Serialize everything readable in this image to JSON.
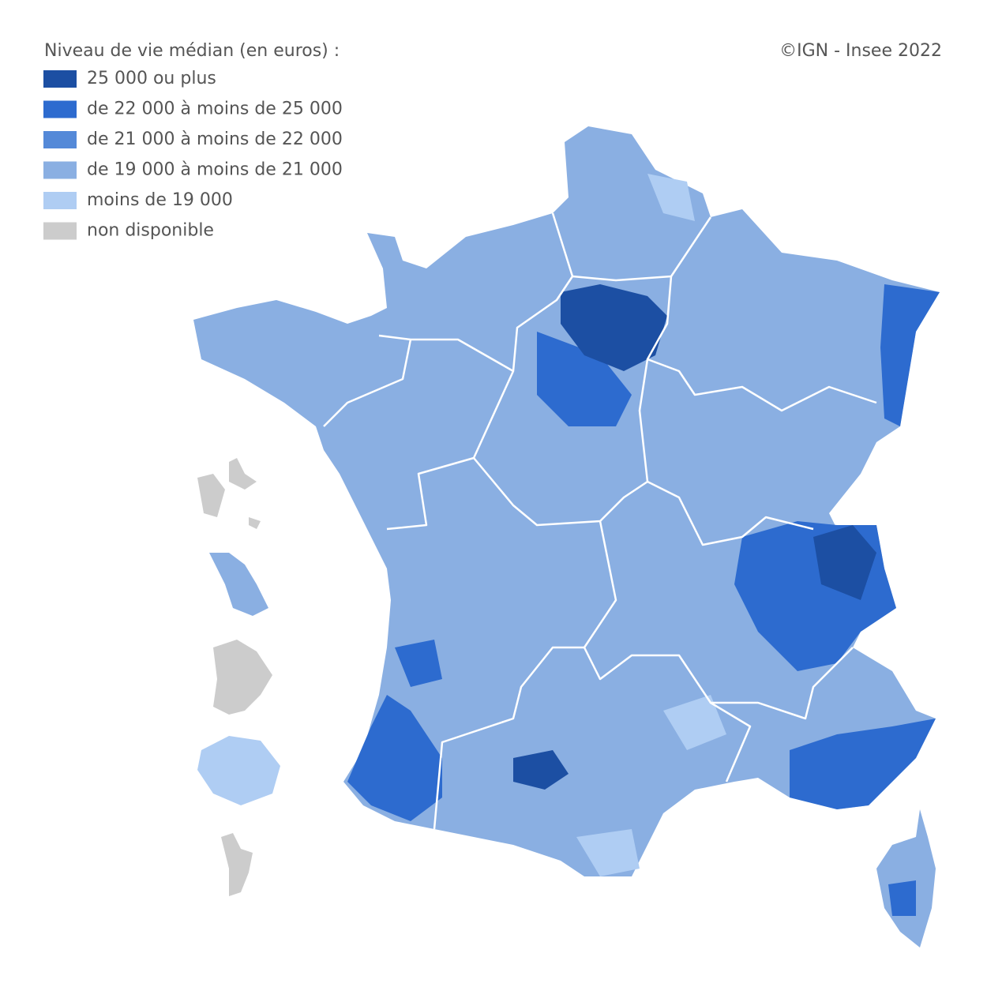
{
  "legend": {
    "title": "Niveau de vie médian (en euros) :",
    "items": [
      {
        "label": "25 000 ou plus",
        "color": "#1c4fa3"
      },
      {
        "label": "de 22 000 à moins de 25 000",
        "color": "#2d6bcf"
      },
      {
        "label": "de 21 000 à moins de 22 000",
        "color": "#5489d8"
      },
      {
        "label": "de 19 000 à moins de 21 000",
        "color": "#8aafe2"
      },
      {
        "label": "moins de 19 000",
        "color": "#afcdf3"
      },
      {
        "label": "non disponible",
        "color": "#cccccc"
      }
    ]
  },
  "credit": "©IGN - Insee 2022"
}
